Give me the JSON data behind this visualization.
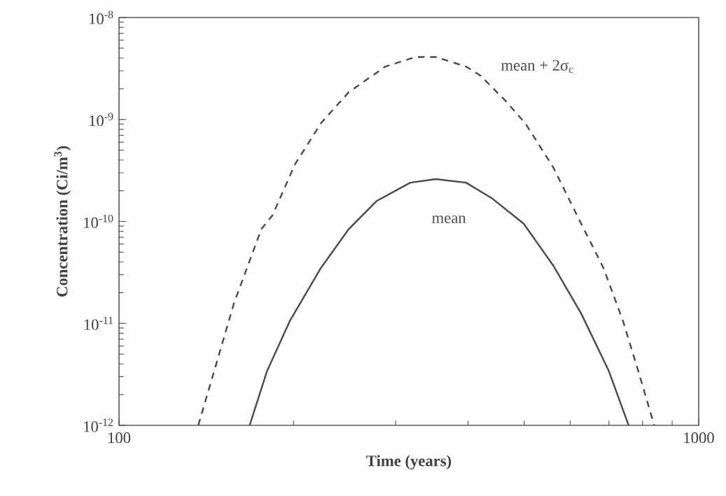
{
  "chart_data": {
    "type": "line",
    "xlabel": "Time (years)",
    "ylabel": "Concentration (Ci/m$^{3}$)",
    "log": "xy",
    "xlim": [
      100,
      1000
    ],
    "ylim": [
      1e-12,
      1e-08
    ],
    "xticks": [
      100,
      1000
    ],
    "yticks": [
      {
        "value": 1e-12,
        "label": "10$^{-12}$"
      },
      {
        "value": 1e-11,
        "label": "10$^{-11}$"
      },
      {
        "value": 1e-10,
        "label": "10$^{-10}$"
      },
      {
        "value": 1e-09,
        "label": "10$^{-9}$"
      },
      {
        "value": 1e-08,
        "label": "10$^{-8}$"
      }
    ],
    "grid": false,
    "series": [
      {
        "color": "#4a4a4a",
        "line_style": "dashed",
        "x": [
          137,
          158,
          176,
          184,
          201,
          223,
          249,
          288,
          325,
          352,
          397,
          420,
          464,
          502,
          561,
          627,
          685,
          741,
          792,
          838
        ],
        "values": [
          1e-12,
          1.6e-11,
          8.4e-11,
          1.15e-10,
          3.6e-10,
          9.2e-10,
          1.85e-09,
          3.3e-09,
          4.1e-09,
          4.1e-09,
          3.3e-09,
          2.7e-09,
          1.53e-09,
          9.2e-10,
          3.4e-10,
          9.5e-11,
          3.5e-11,
          1.04e-11,
          3e-12,
          1e-12
        ]
      },
      {
        "color": "#4a4a4a",
        "line_style": "solid",
        "x": [
          168,
          180,
          197,
          223,
          249,
          278,
          318,
          352,
          397,
          439,
          499,
          561,
          627,
          700,
          757
        ],
        "values": [
          1e-12,
          3.4e-12,
          1.05e-11,
          3.5e-11,
          8.4e-11,
          1.58e-10,
          2.4e-10,
          2.6e-10,
          2.4e-10,
          1.7e-10,
          9.5e-11,
          3.7e-11,
          1.25e-11,
          3.4e-12,
          1e-12
        ]
      }
    ],
    "annotations": [
      "mean + 2σ$_{c}$",
      "mean"
    ]
  }
}
